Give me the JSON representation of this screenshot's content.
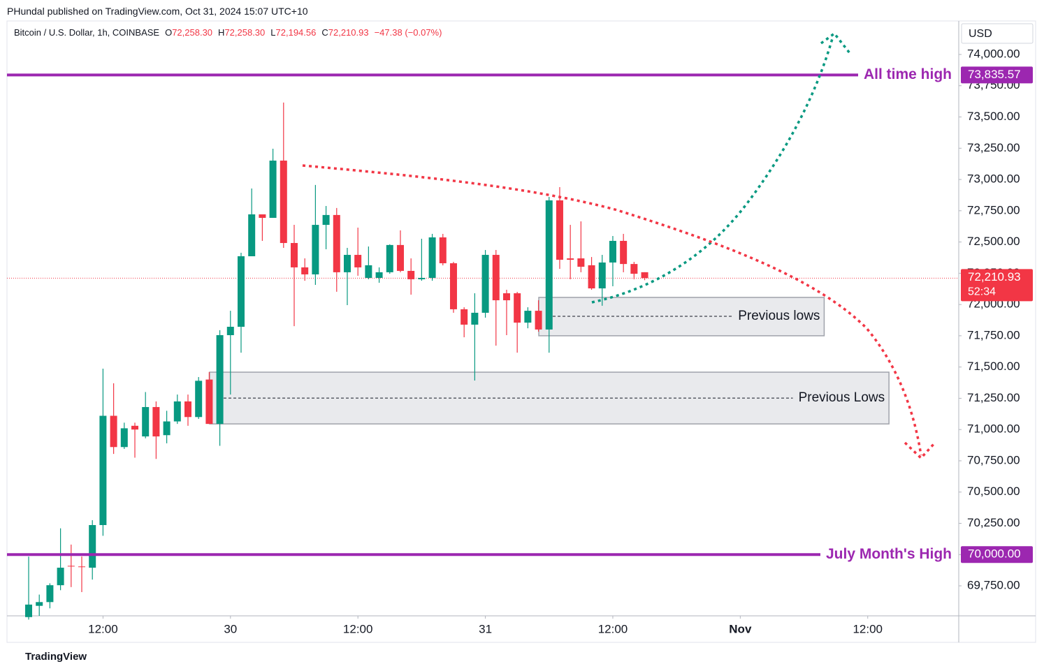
{
  "header": {
    "publisher": "PHundal published on TradingView.com, Oct 31, 2024 15:07 UTC+10",
    "footer": "TradingView"
  },
  "chart_data": {
    "type": "candlestick",
    "title": "Bitcoin / U.S. Dollar, 1h, COINBASE",
    "legend": [
      {
        "label": "O",
        "value": "72,258.30"
      },
      {
        "label": "H",
        "value": "72,258.30"
      },
      {
        "label": "L",
        "value": "72,194.56"
      },
      {
        "label": "C",
        "value": "72,210.93"
      }
    ],
    "change": "−47.38 (−0.07%)",
    "currency": "USD",
    "open": [
      69500,
      69590,
      69620,
      69755,
      69910,
      69905,
      69895,
      70236,
      71110,
      70860,
      71030,
      70945,
      71180,
      70955,
      71065,
      71225,
      71100,
      71400,
      71045,
      71755,
      71822,
      72386,
      72721,
      72693,
      73151,
      72492,
      72297,
      72241,
      72637,
      72716,
      72258,
      72397,
      72213,
      72213,
      72258,
      72476,
      72269,
      72202,
      72213,
      72537,
      72330,
      71962,
      71839,
      71934,
      72397,
      72090,
      72090,
      71855,
      71950,
      71800,
      72833,
      72369,
      72369,
      72314,
      72129,
      72336,
      72509,
      72324,
      72258.3
    ],
    "high": [
      69984,
      69680,
      69770,
      70210,
      70080,
      69985,
      70275,
      71487,
      71370,
      71055,
      71055,
      71300,
      71225,
      71150,
      71280,
      71280,
      71420,
      71460,
      71795,
      71950,
      72414,
      72928,
      72721,
      73246,
      73615,
      72637,
      72369,
      72956,
      72788,
      72772,
      72453,
      72615,
      72464,
      72297,
      72481,
      72593,
      72369,
      72526,
      72565,
      72565,
      72341,
      71978,
      72090,
      72436,
      72436,
      72118,
      72101,
      71978,
      72034,
      72861,
      72939,
      72637,
      72665,
      72380,
      72397,
      72548,
      72565,
      72341,
      72258.3
    ],
    "low": [
      69480,
      69510,
      69570,
      69715,
      69740,
      69700,
      69800,
      70150,
      70805,
      70845,
      70775,
      70930,
      70765,
      70890,
      71045,
      71030,
      71085,
      71045,
      70870,
      71280,
      71615,
      72386,
      72509,
      72693,
      72453,
      71827,
      72190,
      72157,
      72442,
      72102,
      71995,
      72230,
      72202,
      72174,
      72246,
      72258,
      72079,
      72190,
      72190,
      72313,
      71934,
      71738,
      71392,
      71895,
      71671,
      71755,
      71615,
      71810,
      71783,
      71615,
      72285,
      72202,
      72258,
      72118,
      71990,
      72146,
      72258,
      72202,
      72194.56
    ],
    "close": [
      69600,
      69620,
      69755,
      69895,
      69905,
      69900,
      70236,
      71110,
      70860,
      71010,
      71000,
      71180,
      70945,
      71065,
      71225,
      71100,
      71390,
      71045,
      71755,
      71822,
      72386,
      72721,
      72693,
      73151,
      72492,
      72297,
      72241,
      72637,
      72716,
      72258,
      72397,
      72297,
      72314,
      72258,
      72476,
      72269,
      72202,
      72213,
      72537,
      72330,
      71962,
      71839,
      71934,
      72397,
      72034,
      72034,
      71855,
      71950,
      71800,
      72833,
      72358,
      72358,
      72302,
      72129,
      72336,
      72509,
      72324,
      72246,
      72210.93
    ],
    "up_color": "#089981",
    "down_color": "#f23645",
    "xlim": [
      -2.04,
      87.57
    ],
    "xticks": [
      {
        "value": 7,
        "label": "12:00"
      },
      {
        "value": 19,
        "label": "30"
      },
      {
        "value": 31,
        "label": "12:00"
      },
      {
        "value": 43,
        "label": "31"
      },
      {
        "value": 55,
        "label": "12:00"
      },
      {
        "value": 67,
        "label": "Nov"
      },
      {
        "value": 79,
        "label": "12:00"
      }
    ],
    "ylim": [
      69510,
      74268
    ],
    "yticks": [
      {
        "value": 69750,
        "label": "69,750.00"
      },
      {
        "value": 70000,
        "label": "70,000.00"
      },
      {
        "value": 70250,
        "label": "70,250.00"
      },
      {
        "value": 70500,
        "label": "70,500.00"
      },
      {
        "value": 70750,
        "label": "70,750.00"
      },
      {
        "value": 71000,
        "label": "71,000.00"
      },
      {
        "value": 71250,
        "label": "71,250.00"
      },
      {
        "value": 71500,
        "label": "71,500.00"
      },
      {
        "value": 71750,
        "label": "71,750.00"
      },
      {
        "value": 72000,
        "label": "72,000.00"
      },
      {
        "value": 72250,
        "label": "72,250.00"
      },
      {
        "value": 72500,
        "label": "72,500.00"
      },
      {
        "value": 72750,
        "label": "72,750.00"
      },
      {
        "value": 73000,
        "label": "73,000.00"
      },
      {
        "value": 73250,
        "label": "73,250.00"
      },
      {
        "value": 73500,
        "label": "73,500.00"
      },
      {
        "value": 73750,
        "label": "73,750.00"
      },
      {
        "value": 74000,
        "label": "74,000.00"
      }
    ],
    "levels": [
      {
        "name": "All time high",
        "value": 73835.57,
        "value_label": "73,835.57",
        "color": "#9c27b0"
      },
      {
        "name": "July Month's High",
        "value": 70000,
        "value_label": "70,000.00",
        "color": "#9c27b0"
      }
    ],
    "last": {
      "value": 72210.93,
      "value_label": "72,210.93",
      "countdown": "52:34",
      "color": "#f23645"
    },
    "zones": [
      {
        "name": "Previous lows",
        "top": 72057,
        "bottom": 71750,
        "mid": 71906,
        "start": 48.03,
        "end": 74.9
      },
      {
        "name": "Previous Lows",
        "top": 71459,
        "bottom": 71045,
        "mid": 71252,
        "start": 17.04,
        "end": 81
      }
    ]
  }
}
